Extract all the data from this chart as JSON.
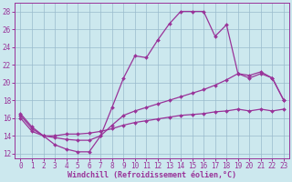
{
  "bg_color": "#cce8ee",
  "grid_color": "#99bbcc",
  "line_color": "#993399",
  "marker": "D",
  "markersize": 2,
  "linewidth": 0.9,
  "xlabel": "Windchill (Refroidissement éolien,°C)",
  "xlabel_fontsize": 6,
  "tick_fontsize": 5.5,
  "xlim": [
    -0.5,
    23.5
  ],
  "ylim": [
    11.5,
    29
  ],
  "yticks": [
    12,
    14,
    16,
    18,
    20,
    22,
    24,
    26,
    28
  ],
  "xticks": [
    0,
    1,
    2,
    3,
    4,
    5,
    6,
    7,
    8,
    9,
    10,
    11,
    12,
    13,
    14,
    15,
    16,
    17,
    18,
    19,
    20,
    21,
    22,
    23
  ],
  "curve1_x": [
    0,
    1,
    2,
    3,
    4,
    5,
    6,
    7,
    8,
    9,
    10,
    11,
    12,
    13,
    14,
    15,
    16,
    17,
    18,
    19,
    20,
    21,
    22,
    23
  ],
  "curve1_y": [
    16.5,
    15.0,
    14.0,
    13.0,
    12.5,
    12.2,
    12.2,
    14.0,
    17.2,
    20.5,
    23.0,
    22.8,
    24.8,
    26.6,
    28.0,
    28.0,
    28.0,
    25.2,
    26.5,
    21.0,
    20.8,
    21.2,
    20.5,
    18.0
  ],
  "curve2_x": [
    0,
    1,
    2,
    3,
    4,
    5,
    6,
    7,
    8,
    9,
    10,
    11,
    12,
    13,
    14,
    15,
    16,
    17,
    18,
    19,
    20,
    21,
    22,
    23
  ],
  "curve2_y": [
    16.3,
    14.8,
    14.0,
    13.8,
    13.6,
    13.5,
    13.5,
    14.0,
    15.2,
    16.3,
    16.8,
    17.2,
    17.6,
    18.0,
    18.4,
    18.8,
    19.2,
    19.7,
    20.3,
    21.0,
    20.5,
    21.0,
    20.5,
    18.0
  ],
  "curve3_x": [
    0,
    1,
    2,
    3,
    4,
    5,
    6,
    7,
    8,
    9,
    10,
    11,
    12,
    13,
    14,
    15,
    16,
    17,
    18,
    19,
    20,
    21,
    22,
    23
  ],
  "curve3_y": [
    16.0,
    14.5,
    14.0,
    14.0,
    14.2,
    14.2,
    14.3,
    14.5,
    14.8,
    15.2,
    15.5,
    15.7,
    15.9,
    16.1,
    16.3,
    16.4,
    16.5,
    16.7,
    16.8,
    17.0,
    16.8,
    17.0,
    16.8,
    17.0
  ]
}
